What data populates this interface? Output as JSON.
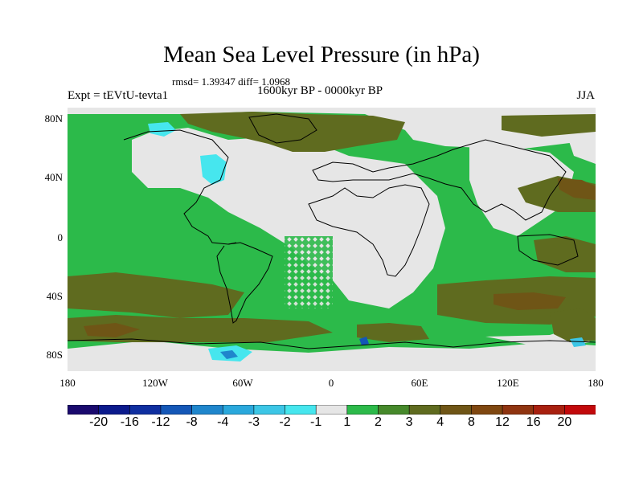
{
  "title": "Mean Sea Level Pressure (in hPa)",
  "stats": "rmsd= 1.39347 diff= 1.0968",
  "experiment": "Expt = tEVtU-tevta1",
  "period": "1600kyr BP - 0000kyr BP",
  "season": "JJA",
  "lat_labels": [
    "80N",
    "40N",
    "0",
    "40S",
    "80S"
  ],
  "lon_labels": [
    "180",
    "120W",
    "60W",
    "0",
    "60E",
    "120E",
    "180"
  ],
  "colorbar": {
    "colors": [
      "#1a0a6e",
      "#0b1a8c",
      "#0f2fa0",
      "#1457b7",
      "#1f86cc",
      "#2aa8dc",
      "#3cc6e6",
      "#46e6ee",
      "#e6e6e6",
      "#2cba4a",
      "#46892b",
      "#5f6b1f",
      "#6f5516",
      "#7f4710",
      "#8f3410",
      "#a8200f",
      "#c2090b"
    ],
    "labels": [
      "-20",
      "-16",
      "-12",
      "-8",
      "-4",
      "-3",
      "-2",
      "-1",
      "1",
      "2",
      "3",
      "4",
      "8",
      "12",
      "16",
      "20"
    ]
  }
}
